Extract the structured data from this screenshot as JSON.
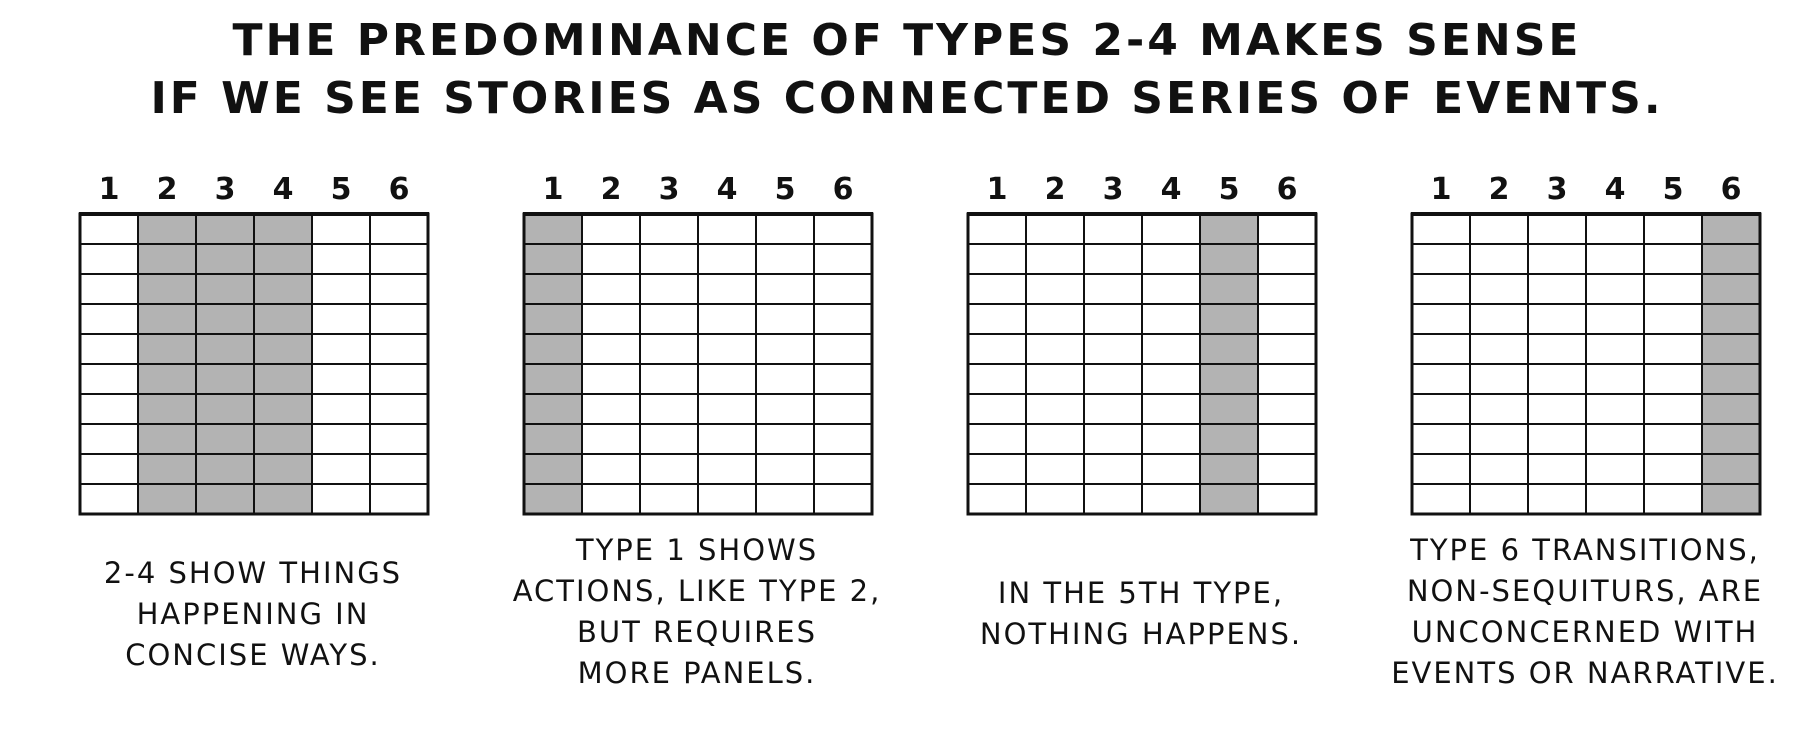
{
  "title": {
    "lines": [
      "THE PREDOMINANCE OF TYPES 2-4 MAKES SENSE",
      "IF WE SEE STORIES AS CONNECTED SERIES OF EVENTS."
    ]
  },
  "panels": [
    {
      "columns": [
        "1",
        "2",
        "3",
        "4",
        "5",
        "6"
      ],
      "rows": 10,
      "shaded_columns": [
        2,
        3,
        4
      ],
      "caption": [
        "2-4 SHOW THINGS",
        "HAPPENING IN",
        "CONCISE WAYS."
      ],
      "caption_align": "center"
    },
    {
      "columns": [
        "1",
        "2",
        "3",
        "4",
        "5",
        "6"
      ],
      "rows": 10,
      "shaded_columns": [
        1
      ],
      "caption": [
        "TYPE 1 SHOWS",
        "ACTIONS, LIKE TYPE 2,",
        "BUT REQUIRES",
        "MORE PANELS."
      ],
      "caption_align": "top"
    },
    {
      "columns": [
        "1",
        "2",
        "3",
        "4",
        "5",
        "6"
      ],
      "rows": 10,
      "shaded_columns": [
        5
      ],
      "caption": [
        "IN THE 5TH TYPE,",
        "NOTHING HAPPENS."
      ],
      "caption_align": "center"
    },
    {
      "columns": [
        "1",
        "2",
        "3",
        "4",
        "5",
        "6"
      ],
      "rows": 10,
      "shaded_columns": [
        6
      ],
      "caption": [
        "TYPE 6 TRANSITIONS,",
        "NON-SEQUITURS, ARE",
        "UNCONCERNED WITH",
        "EVENTS OR NARRATIVE."
      ],
      "caption_align": "top"
    }
  ],
  "colors": {
    "shade": "#b3b3b3",
    "line": "#111111",
    "background": "#ffffff"
  }
}
